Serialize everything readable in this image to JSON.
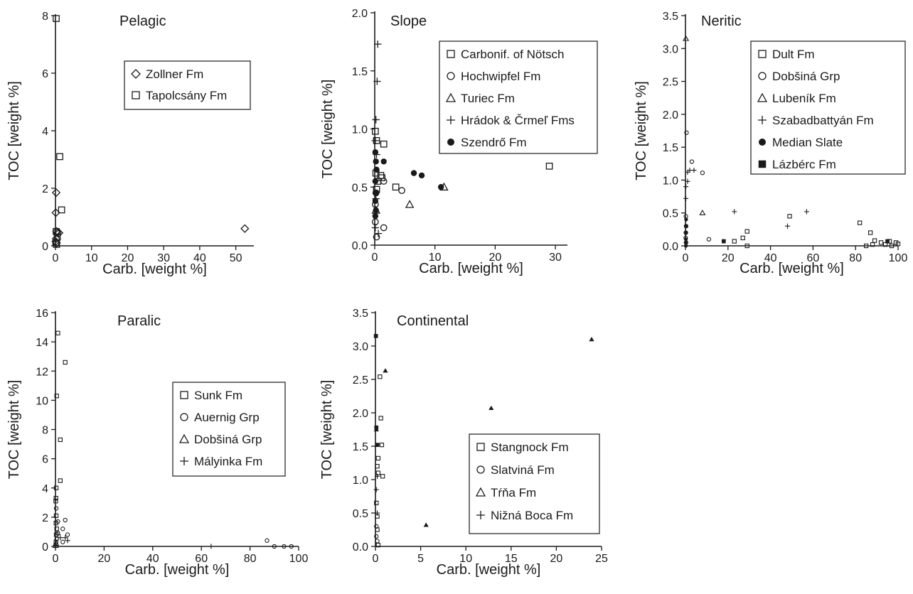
{
  "page_title": "",
  "chart_data": [
    {
      "type": "scatter",
      "title": "Pelagic",
      "xlabel": "Carb. [weight %]",
      "ylabel": "TOC [weight %]",
      "xlim": [
        0,
        55
      ],
      "ylim": [
        0,
        8
      ],
      "xticks": [
        0,
        10,
        20,
        30,
        40,
        50
      ],
      "yticks": [
        0,
        2,
        4,
        6,
        8
      ],
      "legend_position": "upper-center",
      "series": [
        {
          "name": "Zollner Fm",
          "marker": "diamond",
          "size": "large",
          "points": [
            [
              0.2,
              1.85
            ],
            [
              0.1,
              1.15
            ],
            [
              0.3,
              0.5
            ],
            [
              0.5,
              0.45
            ],
            [
              1.0,
              0.45
            ],
            [
              0.2,
              0.25
            ],
            [
              0.1,
              0.15
            ],
            [
              0.3,
              0.1
            ],
            [
              52.5,
              0.6
            ]
          ]
        },
        {
          "name": "Tapolcsány Fm",
          "marker": "square",
          "size": "large",
          "points": [
            [
              0.2,
              7.9
            ],
            [
              1.2,
              3.1
            ],
            [
              1.7,
              1.25
            ],
            [
              0.2,
              0.5
            ],
            [
              0.5,
              0.3
            ],
            [
              0.1,
              0.1
            ],
            [
              0.3,
              0.05
            ]
          ]
        }
      ]
    },
    {
      "type": "scatter",
      "title": "Slope",
      "xlabel": "Carb. [weight %]",
      "ylabel": "TOC [weight %]",
      "xlim": [
        0,
        32
      ],
      "ylim": [
        0,
        2.0
      ],
      "xticks": [
        0,
        10,
        20,
        30
      ],
      "yticks": [
        0.0,
        0.5,
        1.0,
        1.5,
        2.0
      ],
      "legend_position": "upper-right",
      "series": [
        {
          "name": "Carbonif. of Nötsch",
          "marker": "square",
          "size": "large",
          "points": [
            [
              0.1,
              0.98
            ],
            [
              0.3,
              0.9
            ],
            [
              0.2,
              0.62
            ],
            [
              1.0,
              0.6
            ],
            [
              1.5,
              0.87
            ],
            [
              0.5,
              0.55
            ],
            [
              3.5,
              0.5
            ],
            [
              1.2,
              0.58
            ],
            [
              0.3,
              0.48
            ],
            [
              29,
              0.68
            ]
          ]
        },
        {
          "name": "Hochwipfel Fm",
          "marker": "circle",
          "size": "large",
          "points": [
            [
              0.2,
              0.45
            ],
            [
              0.1,
              0.35
            ],
            [
              1.5,
              0.55
            ],
            [
              4.5,
              0.47
            ],
            [
              1.5,
              0.15
            ],
            [
              0.3,
              0.07
            ],
            [
              0.1,
              0.2
            ]
          ]
        },
        {
          "name": "Turiec Fm",
          "marker": "triangle",
          "size": "large",
          "points": [
            [
              0.2,
              0.3
            ],
            [
              5.8,
              0.35
            ],
            [
              11.5,
              0.5
            ]
          ]
        },
        {
          "name": "Hrádok & Črmeľ Fms",
          "marker": "plus",
          "size": "large",
          "points": [
            [
              0.5,
              1.73
            ],
            [
              0.4,
              1.41
            ],
            [
              0.2,
              1.08
            ],
            [
              0.1,
              0.9
            ],
            [
              0.3,
              0.78
            ],
            [
              0.2,
              0.4
            ],
            [
              0.1,
              0.15
            ],
            [
              0.6,
              0.1
            ]
          ]
        },
        {
          "name": "Szendrő Fm",
          "marker": "dot",
          "size": "large",
          "points": [
            [
              0.1,
              0.8
            ],
            [
              0.2,
              0.72
            ],
            [
              0.3,
              0.65
            ],
            [
              0.1,
              0.55
            ],
            [
              0.2,
              0.45
            ],
            [
              0.1,
              0.38
            ],
            [
              0.2,
              0.3
            ],
            [
              0.1,
              0.25
            ],
            [
              1.5,
              0.72
            ],
            [
              6.5,
              0.62
            ],
            [
              7.8,
              0.6
            ],
            [
              11.0,
              0.5
            ]
          ]
        }
      ]
    },
    {
      "type": "scatter",
      "title": "Neritic",
      "xlabel": "Carb. [weight %]",
      "ylabel": "TOC [weight %]",
      "xlim": [
        0,
        100
      ],
      "ylim": [
        0,
        3.5
      ],
      "xticks": [
        0,
        20,
        40,
        60,
        80,
        100
      ],
      "yticks": [
        0.0,
        0.5,
        1.0,
        1.5,
        2.0,
        2.5,
        3.0,
        3.5
      ],
      "legend_position": "upper-right",
      "series": [
        {
          "name": "Dult Fm",
          "marker": "square",
          "size": "small",
          "points": [
            [
              49,
              0.45
            ],
            [
              29,
              0.22
            ],
            [
              23,
              0.07
            ],
            [
              27,
              0.12
            ],
            [
              29,
              0.0
            ],
            [
              82,
              0.35
            ],
            [
              85,
              0.0
            ],
            [
              87,
              0.2
            ],
            [
              89,
              0.08
            ],
            [
              88,
              0.02
            ],
            [
              92,
              0.05
            ],
            [
              94,
              0.02
            ],
            [
              96,
              0.07
            ],
            [
              97,
              0.0
            ],
            [
              99,
              0.05
            ],
            [
              100,
              0.03
            ]
          ]
        },
        {
          "name": "Dobšiná Grp",
          "marker": "circle",
          "size": "small",
          "points": [
            [
              0.5,
              1.72
            ],
            [
              3,
              1.28
            ],
            [
              8,
              1.11
            ],
            [
              11,
              0.1
            ],
            [
              0.2,
              0.45
            ],
            [
              0.3,
              0.3
            ],
            [
              0.2,
              0.2
            ],
            [
              0.1,
              0.12
            ],
            [
              0.3,
              0.05
            ]
          ]
        },
        {
          "name": "Lubeník Fm",
          "marker": "triangle",
          "size": "small",
          "points": [
            [
              0.2,
              3.15
            ],
            [
              8,
              0.5
            ]
          ]
        },
        {
          "name": "Szabadbattyán Fm",
          "marker": "plus",
          "size": "small",
          "points": [
            [
              1,
              1.12
            ],
            [
              2,
              1.15
            ],
            [
              4,
              1.15
            ],
            [
              1,
              0.98
            ],
            [
              0.2,
              0.9
            ],
            [
              0.2,
              0.72
            ],
            [
              23,
              0.52
            ],
            [
              57,
              0.52
            ],
            [
              48,
              0.3
            ]
          ]
        },
        {
          "name": "Median Slate",
          "marker": "dot",
          "size": "small",
          "points": [
            [
              0.3,
              0.4
            ],
            [
              0.2,
              0.3
            ],
            [
              0.1,
              0.2
            ],
            [
              0.2,
              0.1
            ],
            [
              0.1,
              0.05
            ],
            [
              0.2,
              0.0
            ]
          ]
        },
        {
          "name": "Lázbérc Fm",
          "marker": "filled-square",
          "size": "small",
          "points": [
            [
              18,
              0.07
            ],
            [
              95,
              0.07
            ]
          ]
        }
      ]
    },
    {
      "type": "scatter",
      "title": "Paralic",
      "xlabel": "Carb. [weight %]",
      "ylabel": "TOC [weight %]",
      "xlim": [
        0,
        100
      ],
      "ylim": [
        0,
        16
      ],
      "xticks": [
        0,
        20,
        40,
        60,
        80,
        100
      ],
      "yticks": [
        0,
        2,
        4,
        6,
        8,
        10,
        12,
        14,
        16
      ],
      "legend_position": "center-right",
      "series": [
        {
          "name": "Sunk Fm",
          "marker": "square",
          "size": "small",
          "points": [
            [
              1,
              14.6
            ],
            [
              4,
              12.6
            ],
            [
              0.5,
              10.3
            ],
            [
              2,
              7.3
            ],
            [
              2,
              4.5
            ],
            [
              0.3,
              4.0
            ],
            [
              0.2,
              3.3
            ],
            [
              0.1,
              3.1
            ],
            [
              0.3,
              2.1
            ],
            [
              0.2,
              1.6
            ],
            [
              0.5,
              1.2
            ],
            [
              0.3,
              0.8
            ],
            [
              0.2,
              0.3
            ]
          ]
        },
        {
          "name": "Auernig Grp",
          "marker": "circle",
          "size": "small",
          "points": [
            [
              0.3,
              2.6
            ],
            [
              1,
              1.7
            ],
            [
              4,
              1.8
            ],
            [
              3,
              1.2
            ],
            [
              5,
              0.8
            ],
            [
              1,
              0.9
            ],
            [
              3,
              0.3
            ],
            [
              0.5,
              0.5
            ],
            [
              87,
              0.4
            ],
            [
              90,
              -0.1
            ],
            [
              94,
              -0.05
            ],
            [
              97,
              -0.1
            ]
          ]
        },
        {
          "name": "Dobšiná Grp",
          "marker": "triangle",
          "size": "small",
          "points": [
            [
              0.2,
              0.2
            ],
            [
              0.1,
              0.05
            ]
          ]
        },
        {
          "name": "Mályinka Fm",
          "marker": "plus",
          "size": "small",
          "points": [
            [
              1,
              0.8
            ],
            [
              2,
              0.6
            ],
            [
              4,
              0.6
            ],
            [
              5,
              0.4
            ],
            [
              64,
              0.0
            ]
          ]
        }
      ]
    },
    {
      "type": "scatter",
      "title": "Continental",
      "xlabel": "Carb. [weight %]",
      "ylabel": "TOC [weight %]",
      "xlim": [
        0,
        25
      ],
      "ylim": [
        0,
        3.5
      ],
      "xticks": [
        0,
        5,
        10,
        15,
        20,
        25
      ],
      "yticks": [
        0.0,
        0.5,
        1.0,
        1.5,
        2.0,
        2.5,
        3.0,
        3.5
      ],
      "legend_position": "lower-right",
      "series": [
        {
          "name": "Stangnock Fm",
          "marker": "square",
          "size": "small",
          "points": [
            [
              0.5,
              2.54
            ],
            [
              0.6,
              1.92
            ],
            [
              0.7,
              1.52
            ],
            [
              0.3,
              1.32
            ],
            [
              0.2,
              1.2
            ],
            [
              0.3,
              1.1
            ],
            [
              0.8,
              1.05
            ],
            [
              0.1,
              0.65
            ],
            [
              0.2,
              0.45
            ],
            [
              0.2,
              0.25
            ],
            [
              0.3,
              0.02
            ]
          ]
        },
        {
          "name": "Slatviná Fm",
          "marker": "circle",
          "size": "small",
          "points": [
            [
              0.1,
              0.3
            ],
            [
              0.1,
              0.15
            ],
            [
              0.2,
              0.08
            ]
          ]
        },
        {
          "name": "Tŕňa Fm",
          "marker": "filled-triangle",
          "size": "small",
          "points": [
            [
              1.1,
              2.63
            ],
            [
              12.8,
              2.07
            ],
            [
              23.9,
              3.1
            ],
            [
              5.6,
              0.32
            ],
            [
              0.1,
              1.75
            ]
          ]
        },
        {
          "name": "Nižná Boca Fm",
          "marker": "plus",
          "size": "small",
          "points": [
            [
              0.2,
              1.05
            ],
            [
              0.1,
              0.85
            ],
            [
              0.2,
              0.5
            ]
          ]
        },
        {
          "name": "",
          "marker": "filled-square",
          "size": "small",
          "points": [
            [
              0.05,
              3.15
            ],
            [
              0.1,
              1.78
            ],
            [
              0.2,
              1.52
            ]
          ]
        }
      ]
    }
  ]
}
